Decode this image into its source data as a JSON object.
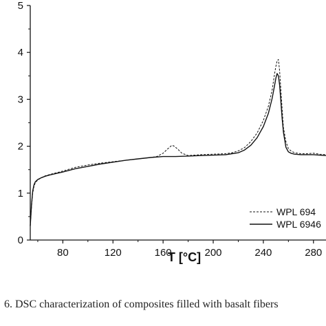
{
  "caption": "6.   DSC characterization of composites filled with basalt fibers",
  "chart_data": {
    "type": "line",
    "title": "",
    "xlabel": "T [°C]",
    "ylabel": "",
    "xlim": [
      54,
      290
    ],
    "ylim": [
      0,
      5
    ],
    "xticks": [
      80,
      120,
      160,
      200,
      240,
      280
    ],
    "yticks": [
      0,
      1,
      2,
      3,
      4,
      5
    ],
    "grid": false,
    "legend_position": "bottom-right",
    "series": [
      {
        "name": "WPL 694",
        "style": "dashed",
        "x": [
          54,
          55,
          56,
          57,
          58,
          60,
          63,
          66,
          70,
          80,
          90,
          100,
          110,
          120,
          130,
          140,
          150,
          155,
          160,
          164,
          167,
          169,
          172,
          175,
          180,
          190,
          200,
          210,
          215,
          220,
          225,
          230,
          235,
          240,
          244,
          247,
          249,
          250,
          251,
          252,
          253,
          254,
          255,
          256,
          258,
          260,
          262,
          265,
          270,
          275,
          280,
          285,
          290
        ],
        "y": [
          0.3,
          0.7,
          1.0,
          1.15,
          1.22,
          1.28,
          1.33,
          1.37,
          1.4,
          1.47,
          1.55,
          1.6,
          1.64,
          1.67,
          1.7,
          1.73,
          1.76,
          1.78,
          1.85,
          1.95,
          2.02,
          2.0,
          1.93,
          1.85,
          1.8,
          1.82,
          1.83,
          1.84,
          1.86,
          1.9,
          1.97,
          2.1,
          2.28,
          2.55,
          2.85,
          3.2,
          3.55,
          3.7,
          3.82,
          3.85,
          3.6,
          3.2,
          2.8,
          2.4,
          2.1,
          1.95,
          1.9,
          1.86,
          1.84,
          1.84,
          1.85,
          1.83,
          1.82
        ]
      },
      {
        "name": "WPL 6946",
        "style": "solid",
        "x": [
          54,
          55,
          56,
          57,
          58,
          60,
          63,
          66,
          70,
          80,
          90,
          100,
          110,
          120,
          130,
          140,
          150,
          160,
          170,
          180,
          190,
          200,
          210,
          215,
          220,
          225,
          230,
          235,
          240,
          244,
          247,
          249,
          250,
          251,
          252,
          253,
          254,
          255,
          256,
          258,
          260,
          262,
          265,
          270,
          275,
          280,
          285,
          290
        ],
        "y": [
          0.3,
          0.75,
          1.05,
          1.18,
          1.24,
          1.29,
          1.33,
          1.36,
          1.39,
          1.45,
          1.52,
          1.57,
          1.62,
          1.66,
          1.7,
          1.73,
          1.76,
          1.78,
          1.78,
          1.79,
          1.8,
          1.81,
          1.82,
          1.84,
          1.86,
          1.92,
          2.02,
          2.18,
          2.42,
          2.7,
          3.02,
          3.3,
          3.45,
          3.55,
          3.5,
          3.3,
          2.95,
          2.6,
          2.3,
          1.98,
          1.88,
          1.85,
          1.83,
          1.82,
          1.82,
          1.82,
          1.81,
          1.8
        ]
      }
    ]
  }
}
